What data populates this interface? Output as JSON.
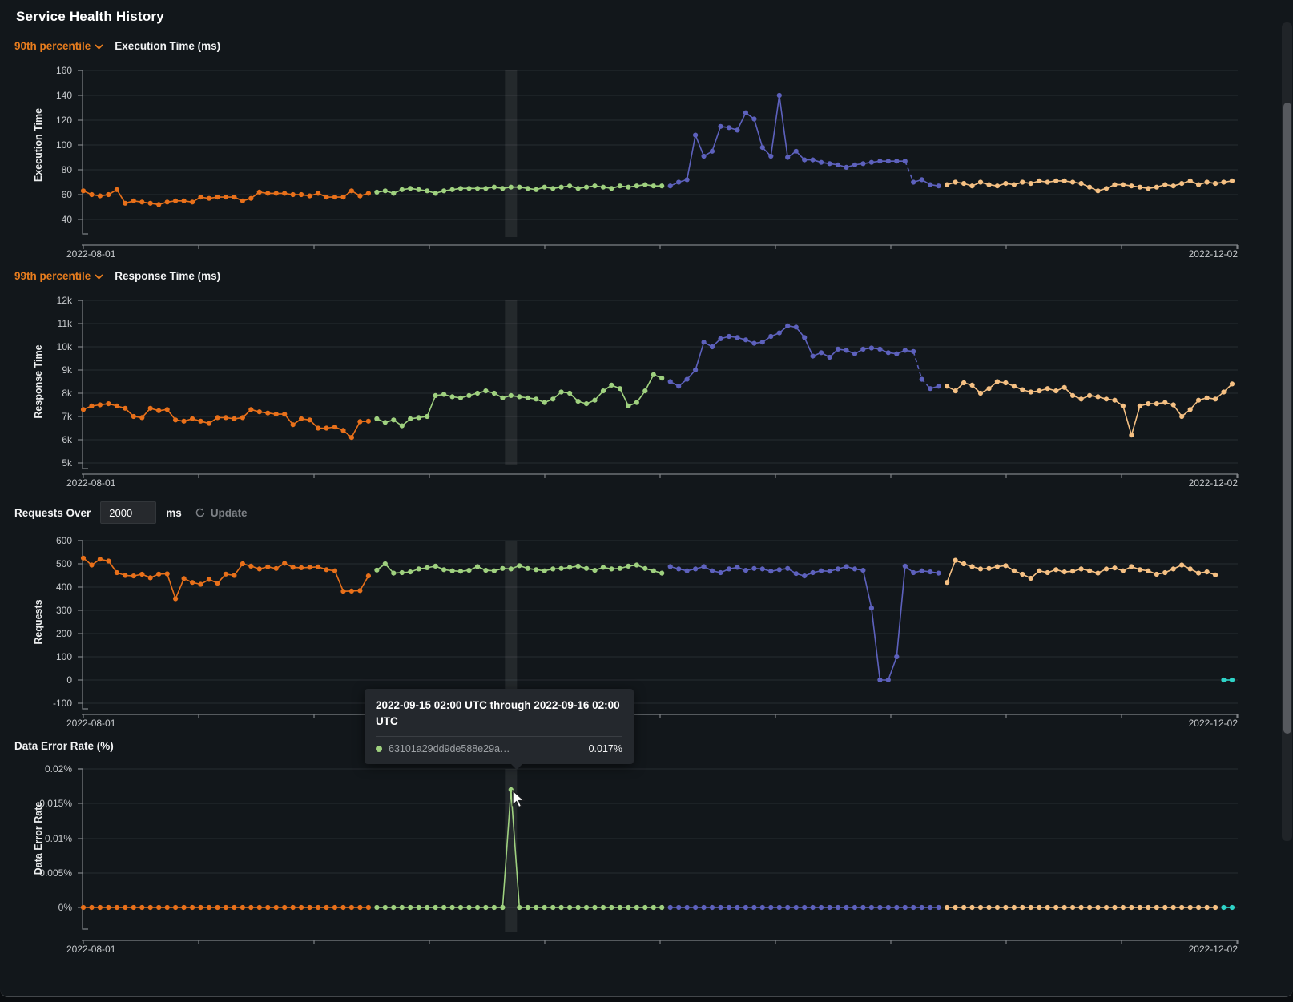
{
  "page": {
    "title": "Service Health History"
  },
  "colors": {
    "orange": "#e8701a",
    "green": "#9fd17f",
    "purple": "#5d61bd",
    "tan": "#f5c083",
    "cyan": "#2fd3c7",
    "accent": "#e87d1e",
    "grid": "#272c31",
    "axis": "#7e8286",
    "tick_text": "#c7cacd",
    "band": "rgba(255,255,255,0.08)"
  },
  "controls": {
    "requests_over_label": "Requests Over",
    "requests_over_value": "2000",
    "requests_over_unit": "ms",
    "update_label": "Update"
  },
  "tooltip": {
    "title": "2022-09-15 02:00 UTC through 2022-09-16 02:00 UTC",
    "series_label": "63101a29dd9de588e29a…",
    "value": "0.017%"
  },
  "chart_data": [
    {
      "type": "line",
      "selector": "90th percentile",
      "title": "Execution Time (ms)",
      "ylabel": "Execution Time",
      "ytick_labels": [
        "160",
        "140",
        "120",
        "100",
        "80",
        "60",
        "40"
      ],
      "ytick_values": [
        160,
        140,
        120,
        100,
        80,
        60,
        40
      ],
      "ylim": [
        40,
        160
      ],
      "x_start": "2022-08-01",
      "x_end": "2022-12-02",
      "grid": true,
      "highlight_index": 51,
      "series": [
        {
          "color": "orange",
          "values": [
            63,
            60,
            59,
            60,
            64,
            53,
            55,
            54,
            53,
            52,
            54,
            55,
            55,
            54,
            58,
            57,
            58,
            58,
            58,
            55,
            57,
            62,
            61,
            61,
            61,
            60,
            60,
            59,
            61,
            58,
            58,
            58,
            63,
            59,
            61
          ]
        },
        {
          "color": "green",
          "values": [
            62,
            63,
            61,
            64,
            65,
            64,
            63,
            61,
            63,
            64,
            65,
            65,
            65,
            65,
            66,
            65,
            66,
            66,
            65,
            64,
            66,
            65,
            66,
            67,
            65,
            66,
            67,
            66,
            65,
            67,
            66,
            67,
            68,
            67,
            67
          ]
        },
        {
          "color": "purple",
          "dash": {
            "from": 28,
            "to": 29
          },
          "values": [
            67,
            70,
            72,
            108,
            91,
            95,
            115,
            114,
            112,
            126,
            121,
            98,
            91,
            140,
            90,
            95,
            88,
            88,
            86,
            85,
            84,
            82,
            84,
            85,
            86,
            87,
            87,
            87,
            87,
            70,
            72,
            68,
            67
          ]
        },
        {
          "color": "tan",
          "values": [
            68,
            70,
            69,
            67,
            70,
            68,
            67,
            69,
            68,
            70,
            69,
            71,
            70,
            71,
            71,
            70,
            69,
            66,
            63,
            65,
            68,
            68,
            67,
            66,
            65,
            66,
            68,
            67,
            69,
            71,
            68,
            70,
            69,
            70,
            71
          ]
        }
      ]
    },
    {
      "type": "line",
      "selector": "99th percentile",
      "title": "Response Time (ms)",
      "ylabel": "Response Time",
      "ytick_labels": [
        "12k",
        "11k",
        "10k",
        "9k",
        "8k",
        "7k",
        "6k",
        "5k"
      ],
      "ytick_values": [
        12,
        11,
        10,
        9,
        8,
        7,
        6,
        5
      ],
      "ylim": [
        5,
        12
      ],
      "x_start": "2022-08-01",
      "x_end": "2022-12-02",
      "grid": true,
      "highlight_index": 51,
      "series": [
        {
          "color": "orange",
          "values": [
            7.3,
            7.45,
            7.5,
            7.55,
            7.45,
            7.35,
            7.0,
            6.95,
            7.35,
            7.25,
            7.3,
            6.85,
            6.8,
            6.9,
            6.8,
            6.7,
            6.95,
            6.95,
            6.9,
            6.95,
            7.3,
            7.2,
            7.15,
            7.1,
            7.1,
            6.65,
            6.9,
            6.85,
            6.5,
            6.5,
            6.55,
            6.4,
            6.1,
            6.78,
            6.8
          ]
        },
        {
          "color": "green",
          "values": [
            6.9,
            6.75,
            6.85,
            6.6,
            6.9,
            6.95,
            7.0,
            7.9,
            7.95,
            7.85,
            7.8,
            7.9,
            8.0,
            8.1,
            8.0,
            7.8,
            7.9,
            7.85,
            7.8,
            7.75,
            7.6,
            7.75,
            8.05,
            8.0,
            7.65,
            7.55,
            7.7,
            8.1,
            8.35,
            8.2,
            7.45,
            7.6,
            8.1,
            8.8,
            8.65
          ]
        },
        {
          "color": "purple",
          "dash": {
            "from": 29,
            "to": 31
          },
          "values": [
            8.5,
            8.3,
            8.6,
            9.0,
            10.2,
            10.0,
            10.35,
            10.45,
            10.4,
            10.3,
            10.15,
            10.2,
            10.45,
            10.6,
            10.9,
            10.85,
            10.4,
            9.6,
            9.75,
            9.55,
            9.9,
            9.85,
            9.7,
            9.9,
            9.95,
            9.9,
            9.75,
            9.7,
            9.85,
            9.8,
            8.6,
            8.2,
            8.3
          ]
        },
        {
          "color": "tan",
          "values": [
            8.3,
            8.1,
            8.45,
            8.35,
            8.0,
            8.2,
            8.5,
            8.45,
            8.3,
            8.15,
            8.05,
            8.1,
            8.2,
            8.1,
            8.25,
            7.9,
            7.75,
            7.9,
            7.85,
            7.75,
            7.7,
            7.45,
            6.2,
            7.45,
            7.55,
            7.55,
            7.6,
            7.5,
            7.0,
            7.3,
            7.7,
            7.8,
            7.75,
            8.05,
            8.4
          ]
        }
      ]
    },
    {
      "type": "line",
      "title": "Requests",
      "ylabel": "Requests",
      "ytick_labels": [
        "600",
        "500",
        "400",
        "300",
        "200",
        "100",
        "0",
        "-100"
      ],
      "ytick_values": [
        600,
        500,
        400,
        300,
        200,
        100,
        0,
        -100
      ],
      "ylim": [
        -100,
        600
      ],
      "x_start": "2022-08-01",
      "x_end": "2022-12-02",
      "grid": true,
      "highlight_index": 51,
      "series": [
        {
          "color": "orange",
          "values": [
            525,
            495,
            520,
            512,
            462,
            450,
            448,
            455,
            440,
            456,
            457,
            350,
            437,
            420,
            412,
            433,
            417,
            456,
            450,
            500,
            490,
            478,
            487,
            480,
            502,
            485,
            483,
            485,
            487,
            475,
            470,
            382,
            383,
            385,
            448
          ]
        },
        {
          "color": "green",
          "values": [
            473,
            500,
            460,
            462,
            465,
            478,
            483,
            490,
            475,
            470,
            468,
            472,
            488,
            472,
            470,
            480,
            478,
            492,
            480,
            475,
            470,
            478,
            480,
            485,
            490,
            480,
            472,
            485,
            478,
            480,
            490,
            495,
            480,
            470,
            460
          ]
        },
        {
          "color": "purple",
          "values": [
            488,
            478,
            470,
            478,
            488,
            470,
            462,
            478,
            485,
            472,
            480,
            478,
            468,
            475,
            480,
            458,
            448,
            462,
            470,
            468,
            478,
            488,
            478,
            472,
            310,
            0,
            0,
            100,
            490,
            462,
            470,
            465,
            460
          ]
        },
        {
          "color": "tan",
          "values": [
            420,
            515,
            500,
            488,
            478,
            480,
            488,
            492,
            470,
            455,
            438,
            470,
            462,
            475,
            465,
            468,
            478,
            470,
            460,
            478,
            482,
            470,
            488,
            475,
            470,
            455,
            462,
            478,
            495,
            478,
            460,
            465,
            452
          ]
        },
        {
          "color": "cyan",
          "values": [
            0,
            0
          ]
        }
      ]
    },
    {
      "type": "line",
      "title": "Data Error Rate (%)",
      "ylabel": "Data Error Rate",
      "ytick_labels": [
        "0.02%",
        "0.015%",
        "0.01%",
        "0.005%",
        "0%"
      ],
      "ytick_values": [
        0.02,
        0.015,
        0.01,
        0.005,
        0
      ],
      "ylim": [
        0,
        0.02
      ],
      "x_start": "2022-08-01",
      "x_end": "2022-12-02",
      "grid": true,
      "highlight_index": 51,
      "series": [
        {
          "color": "orange",
          "values": [
            0,
            0,
            0,
            0,
            0,
            0,
            0,
            0,
            0,
            0,
            0,
            0,
            0,
            0,
            0,
            0,
            0,
            0,
            0,
            0,
            0,
            0,
            0,
            0,
            0,
            0,
            0,
            0,
            0,
            0,
            0,
            0,
            0,
            0,
            0
          ]
        },
        {
          "color": "green",
          "values": [
            0,
            0,
            0,
            0,
            0,
            0,
            0,
            0,
            0,
            0,
            0,
            0,
            0,
            0,
            0,
            0,
            0.017,
            0,
            0,
            0,
            0,
            0,
            0,
            0,
            0,
            0,
            0,
            0,
            0,
            0,
            0,
            0,
            0,
            0,
            0
          ]
        },
        {
          "color": "purple",
          "values": [
            0,
            0,
            0,
            0,
            0,
            0,
            0,
            0,
            0,
            0,
            0,
            0,
            0,
            0,
            0,
            0,
            0,
            0,
            0,
            0,
            0,
            0,
            0,
            0,
            0,
            0,
            0,
            0,
            0,
            0,
            0,
            0,
            0
          ]
        },
        {
          "color": "tan",
          "values": [
            0,
            0,
            0,
            0,
            0,
            0,
            0,
            0,
            0,
            0,
            0,
            0,
            0,
            0,
            0,
            0,
            0,
            0,
            0,
            0,
            0,
            0,
            0,
            0,
            0,
            0,
            0,
            0,
            0,
            0,
            0,
            0,
            0
          ]
        },
        {
          "color": "cyan",
          "values": [
            0,
            0
          ]
        }
      ]
    }
  ]
}
